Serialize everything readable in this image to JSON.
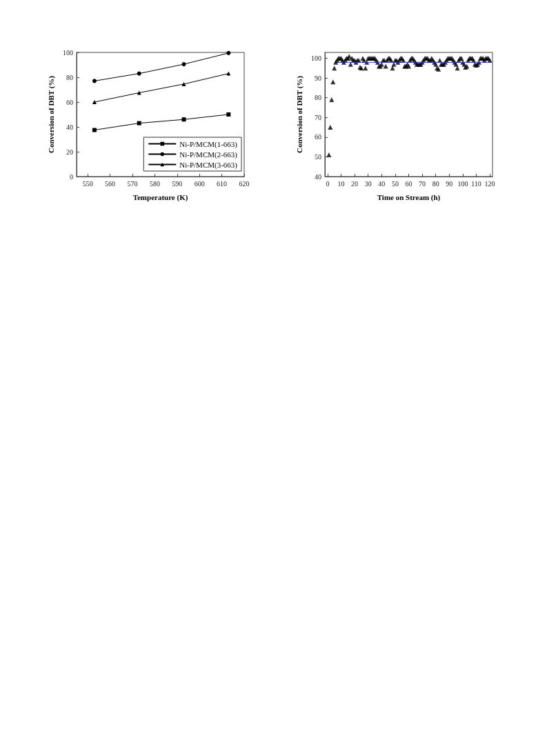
{
  "chart_data": [
    {
      "type": "line",
      "xlabel": "Temperature (K)",
      "ylabel": "Conversion of DBT (%)",
      "x": [
        553,
        573,
        593,
        613
      ],
      "xlim": [
        545,
        620
      ],
      "xticks": [
        550,
        560,
        570,
        580,
        590,
        600,
        610,
        620
      ],
      "ylim": [
        0,
        100
      ],
      "yticks": [
        0,
        20,
        40,
        60,
        80,
        100
      ],
      "grid": false,
      "legend": "bottom right",
      "series": [
        {
          "name": "Ni-P/MCM(1-663)",
          "color": "#000000",
          "marker": "square",
          "values": [
            37.5,
            43,
            46,
            50
          ]
        },
        {
          "name": "Ni-P/MCM(2-663)",
          "color": "#000000",
          "marker": "circle",
          "values": [
            77,
            83,
            90.5,
            99.5
          ]
        },
        {
          "name": "Ni-P/MCM(3-663)",
          "color": "#000000",
          "marker": "triangle",
          "values": [
            60,
            67.5,
            74.5,
            83
          ]
        }
      ]
    },
    {
      "type": "scatter",
      "xlabel": "Time on Stream (h)",
      "ylabel": "Conversion of DBT (%)",
      "xlim": [
        -2,
        122
      ],
      "xticks": [
        0,
        10,
        20,
        30,
        40,
        50,
        60,
        70,
        80,
        90,
        100,
        110,
        120
      ],
      "ylim": [
        40,
        103
      ],
      "yticks": [
        40,
        50,
        60,
        70,
        80,
        90,
        100
      ],
      "grid": false,
      "legend": false,
      "marker": "triangle",
      "series": [
        {
          "color": "#000000",
          "x": [
            1,
            2,
            3,
            4,
            5,
            6,
            7,
            8,
            9,
            10,
            11,
            12,
            13,
            14,
            15,
            16,
            17,
            18,
            19,
            20,
            21,
            22,
            23,
            24,
            25,
            26,
            27,
            28,
            29,
            30,
            31,
            32,
            33,
            34,
            35,
            36,
            37,
            38,
            39,
            40,
            41,
            42,
            43,
            44,
            45,
            46,
            47,
            48,
            49,
            50,
            51,
            52,
            53,
            54,
            55,
            56,
            57,
            58,
            59,
            60,
            61,
            62,
            63,
            64,
            65,
            66,
            67,
            68,
            69,
            70,
            71,
            72,
            73,
            74,
            75,
            76,
            77,
            78,
            79,
            80,
            81,
            82,
            83,
            84,
            85,
            86,
            87,
            88,
            89,
            90,
            91,
            92,
            93,
            94,
            95,
            96,
            97,
            98,
            99,
            100,
            101,
            102,
            103,
            104,
            105,
            106,
            107,
            108,
            109,
            110,
            111,
            112,
            113,
            114,
            115,
            116,
            117,
            118,
            119,
            120
          ],
          "values": [
            51,
            65,
            79,
            88,
            95,
            98,
            99,
            100,
            100,
            100,
            99,
            98,
            99,
            100,
            100,
            101,
            97,
            100,
            99,
            99,
            98,
            99,
            99,
            95.5,
            95,
            100,
            99,
            95,
            98,
            100,
            100,
            100,
            100,
            100,
            100,
            99,
            98,
            96,
            96,
            97,
            99,
            99,
            96,
            99,
            100,
            100,
            99,
            95,
            97,
            99,
            99,
            98,
            99,
            100,
            100,
            99,
            96,
            96,
            97,
            96,
            99,
            100,
            100,
            99,
            98,
            97,
            97,
            97,
            97,
            98,
            99,
            100,
            100,
            100,
            99,
            99,
            100,
            99,
            98,
            97,
            95,
            94.5,
            99,
            97,
            97,
            97,
            98,
            99,
            100,
            100,
            100,
            100,
            99,
            98,
            97,
            95,
            99,
            100,
            100,
            98,
            97,
            95.5,
            96,
            99,
            100,
            100,
            100,
            99,
            97,
            96.5,
            97,
            98,
            100,
            100,
            100,
            99,
            100,
            100,
            100,
            99
          ]
        },
        {
          "type": "line",
          "color": "#3333ee",
          "marker": "none",
          "x": [
            8,
            120
          ],
          "values": [
            98,
            98
          ]
        }
      ]
    }
  ]
}
